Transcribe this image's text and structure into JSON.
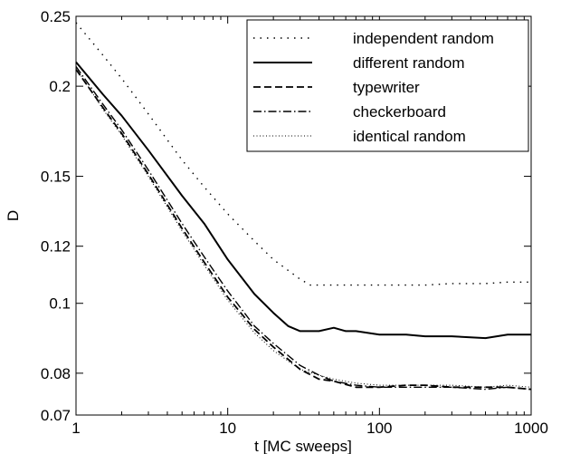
{
  "chart_data": {
    "type": "line",
    "title": "",
    "xlabel": "t [MC sweeps]",
    "ylabel": "D",
    "xscale": "log",
    "yscale": "log",
    "xlim": [
      1,
      1000
    ],
    "ylim": [
      0.07,
      0.25
    ],
    "xticks": [
      {
        "value": 1,
        "label": "1"
      },
      {
        "value": 10,
        "label": "10"
      },
      {
        "value": 100,
        "label": "100"
      },
      {
        "value": 1000,
        "label": "1000"
      }
    ],
    "yticks": [
      {
        "value": 0.07,
        "label": "0.07"
      },
      {
        "value": 0.08,
        "label": "0.08"
      },
      {
        "value": 0.1,
        "label": "0.1"
      },
      {
        "value": 0.12,
        "label": "0.12"
      },
      {
        "value": 0.15,
        "label": "0.15"
      },
      {
        "value": 0.2,
        "label": "0.2"
      },
      {
        "value": 0.25,
        "label": "0.25"
      }
    ],
    "grid": false,
    "legend_position": "top-right",
    "series": [
      {
        "name": "independent random",
        "style": "dotted",
        "color": "#000000",
        "points": [
          [
            1,
            0.245
          ],
          [
            1.5,
            0.221
          ],
          [
            2,
            0.205
          ],
          [
            3,
            0.183
          ],
          [
            5,
            0.158
          ],
          [
            7,
            0.145
          ],
          [
            10,
            0.133
          ],
          [
            15,
            0.122
          ],
          [
            20,
            0.115
          ],
          [
            30,
            0.108
          ],
          [
            35,
            0.106
          ],
          [
            50,
            0.106
          ],
          [
            70,
            0.106
          ],
          [
            100,
            0.106
          ],
          [
            150,
            0.106
          ],
          [
            200,
            0.106
          ],
          [
            300,
            0.1065
          ],
          [
            400,
            0.1065
          ],
          [
            500,
            0.1065
          ],
          [
            700,
            0.107
          ],
          [
            1000,
            0.107
          ]
        ]
      },
      {
        "name": "different random",
        "style": "solid",
        "color": "#000000",
        "points": [
          [
            1,
            0.216
          ],
          [
            1.5,
            0.195
          ],
          [
            2,
            0.182
          ],
          [
            3,
            0.163
          ],
          [
            5,
            0.141
          ],
          [
            7,
            0.129
          ],
          [
            10,
            0.115
          ],
          [
            15,
            0.103
          ],
          [
            20,
            0.097
          ],
          [
            25,
            0.093
          ],
          [
            30,
            0.0915
          ],
          [
            40,
            0.0915
          ],
          [
            50,
            0.0925
          ],
          [
            60,
            0.0915
          ],
          [
            70,
            0.0915
          ],
          [
            100,
            0.0905
          ],
          [
            150,
            0.0905
          ],
          [
            200,
            0.09
          ],
          [
            300,
            0.09
          ],
          [
            500,
            0.0895
          ],
          [
            700,
            0.0905
          ],
          [
            1000,
            0.0905
          ]
        ]
      },
      {
        "name": "typewriter",
        "style": "dashed",
        "color": "#000000",
        "points": [
          [
            1,
            0.211
          ],
          [
            1.5,
            0.187
          ],
          [
            2,
            0.172
          ],
          [
            3,
            0.151
          ],
          [
            5,
            0.127
          ],
          [
            7,
            0.114
          ],
          [
            10,
            0.102
          ],
          [
            15,
            0.092
          ],
          [
            20,
            0.087
          ],
          [
            30,
            0.081
          ],
          [
            40,
            0.0785
          ],
          [
            50,
            0.078
          ],
          [
            70,
            0.0765
          ],
          [
            100,
            0.0765
          ],
          [
            150,
            0.077
          ],
          [
            200,
            0.077
          ],
          [
            300,
            0.0765
          ],
          [
            500,
            0.0765
          ],
          [
            700,
            0.0765
          ],
          [
            1000,
            0.076
          ]
        ]
      },
      {
        "name": "checkerboard",
        "style": "dashdot",
        "color": "#000000",
        "points": [
          [
            1,
            0.213
          ],
          [
            1.5,
            0.189
          ],
          [
            2,
            0.174
          ],
          [
            3,
            0.153
          ],
          [
            5,
            0.129
          ],
          [
            7,
            0.116
          ],
          [
            10,
            0.104
          ],
          [
            15,
            0.093
          ],
          [
            20,
            0.088
          ],
          [
            30,
            0.082
          ],
          [
            40,
            0.0795
          ],
          [
            50,
            0.078
          ],
          [
            70,
            0.077
          ],
          [
            100,
            0.0765
          ],
          [
            150,
            0.0765
          ],
          [
            200,
            0.0765
          ],
          [
            300,
            0.0765
          ],
          [
            500,
            0.076
          ],
          [
            700,
            0.0765
          ],
          [
            1000,
            0.076
          ]
        ]
      },
      {
        "name": "identical random",
        "style": "sparse-dotted",
        "color": "#000000",
        "points": [
          [
            1,
            0.212
          ],
          [
            1.5,
            0.186
          ],
          [
            2,
            0.171
          ],
          [
            3,
            0.15
          ],
          [
            5,
            0.126
          ],
          [
            7,
            0.113
          ],
          [
            10,
            0.101
          ],
          [
            15,
            0.091
          ],
          [
            20,
            0.086
          ],
          [
            30,
            0.081
          ],
          [
            40,
            0.0795
          ],
          [
            50,
            0.0785
          ],
          [
            70,
            0.0775
          ],
          [
            100,
            0.077
          ],
          [
            150,
            0.077
          ],
          [
            200,
            0.077
          ],
          [
            300,
            0.077
          ],
          [
            500,
            0.0765
          ],
          [
            700,
            0.077
          ],
          [
            1000,
            0.0765
          ]
        ]
      }
    ]
  }
}
